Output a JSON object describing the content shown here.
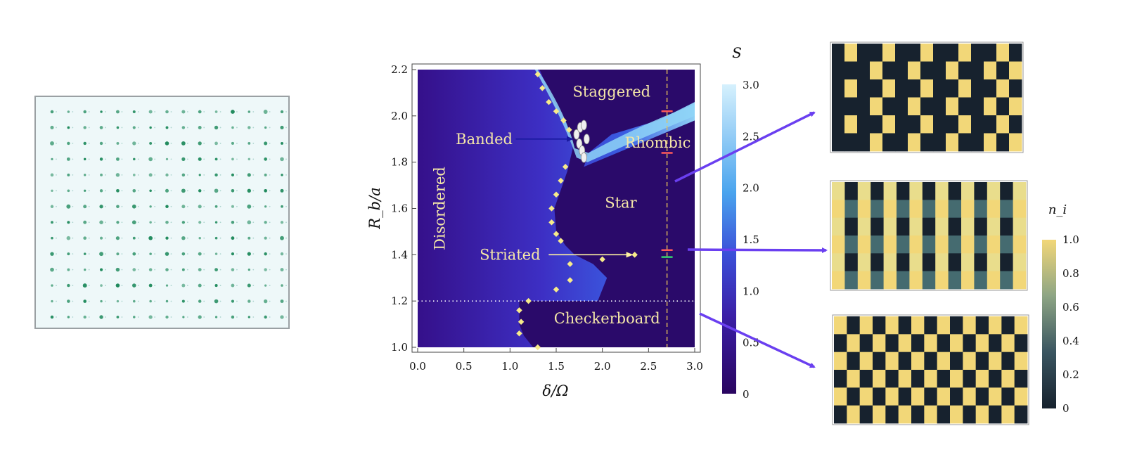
{
  "chart_data": [
    {
      "type": "scatter",
      "panel": "atom-array-image",
      "grid": {
        "rows": 14,
        "cols": 15
      },
      "colors": {
        "background": "#eef8f9",
        "atom": "#1f8a5c",
        "frame": "#9aa0a3"
      }
    },
    {
      "type": "heatmap",
      "panel": "phase-diagram",
      "xlabel": "δ/Ω",
      "ylabel": "R_b/a",
      "xlim": [
        0,
        3.0
      ],
      "ylim": [
        1.0,
        2.2
      ],
      "xticks": [
        "0.0",
        "0.5",
        "1.0",
        "1.5",
        "2.0",
        "2.5",
        "3.0"
      ],
      "yticks": [
        "1.0",
        "1.2",
        "1.4",
        "1.6",
        "1.8",
        "2.0",
        "2.2"
      ],
      "colorbar": {
        "label": "S",
        "range": [
          0,
          3.0
        ],
        "ticks": [
          "0",
          "0.5",
          "1.0",
          "1.5",
          "2.0",
          "2.5",
          "3.0"
        ]
      },
      "phases": [
        {
          "name": "Disordered",
          "x": 0.25,
          "y": 1.6,
          "rotated": true
        },
        {
          "name": "Staggered",
          "x": 2.1,
          "y": 2.1
        },
        {
          "name": "Rhombic",
          "x": 2.6,
          "y": 1.88
        },
        {
          "name": "Star",
          "x": 2.2,
          "y": 1.62
        },
        {
          "name": "Checkerboard",
          "x": 2.05,
          "y": 1.12
        }
      ],
      "annotations": [
        {
          "text": "Banded",
          "x": 0.72,
          "y": 1.9,
          "arrow_to": [
            1.72,
            1.9
          ]
        },
        {
          "text": "Striated",
          "x": 1.0,
          "y": 1.4,
          "arrow_to": [
            2.35,
            1.4
          ]
        }
      ],
      "boundary_points": [
        [
          1.3,
          2.18
        ],
        [
          1.35,
          2.12
        ],
        [
          1.42,
          2.06
        ],
        [
          1.5,
          2.02
        ],
        [
          1.58,
          1.98
        ],
        [
          1.64,
          1.94
        ],
        [
          1.6,
          1.78
        ],
        [
          1.55,
          1.72
        ],
        [
          1.5,
          1.66
        ],
        [
          1.45,
          1.6
        ],
        [
          1.45,
          1.54
        ],
        [
          1.5,
          1.49
        ],
        [
          1.55,
          1.46
        ],
        [
          1.65,
          1.36
        ],
        [
          2.0,
          1.38
        ],
        [
          2.35,
          1.4
        ],
        [
          1.65,
          1.29
        ],
        [
          1.5,
          1.25
        ],
        [
          1.2,
          1.2
        ],
        [
          1.1,
          1.16
        ],
        [
          1.12,
          1.11
        ],
        [
          1.1,
          1.06
        ],
        [
          1.3,
          1.0
        ]
      ],
      "banded_points": [
        [
          1.72,
          1.92
        ],
        [
          1.75,
          1.88
        ],
        [
          1.78,
          1.85
        ],
        [
          1.8,
          1.82
        ],
        [
          1.83,
          1.9
        ],
        [
          1.76,
          1.95
        ],
        [
          1.8,
          1.96
        ]
      ],
      "dotted_line_y": 1.2,
      "dashed_line_x": 2.7,
      "markers": [
        {
          "x": 2.7,
          "y": 2.02,
          "color": "#ff5a5a"
        },
        {
          "x": 2.7,
          "y": 1.84,
          "color": "#ff5a5a"
        },
        {
          "x": 2.7,
          "y": 1.42,
          "color": "#ff5a5a"
        },
        {
          "x": 2.7,
          "y": 1.39,
          "color": "#36d06f"
        }
      ],
      "colors": {
        "dark": "#2a0a6a",
        "mid": "#3b4fd8",
        "light": "#c7ecfb",
        "text": "#f5e7a8",
        "points": "#f7eb8a"
      }
    },
    {
      "type": "heatmap",
      "panel": "rhombic-configuration",
      "rows": 6,
      "cols": 15,
      "pattern": "rhombic"
    },
    {
      "type": "heatmap",
      "panel": "striated-configuration",
      "rows": 6,
      "cols": 15,
      "pattern": "striated"
    },
    {
      "type": "heatmap",
      "panel": "checkerboard-configuration",
      "rows": 6,
      "cols": 15,
      "pattern": "checkerboard"
    }
  ],
  "colorbar_ni": {
    "label": "n_i",
    "range": [
      0,
      1.0
    ],
    "ticks": [
      "0",
      "0.2",
      "0.4",
      "0.6",
      "0.8",
      "1.0"
    ],
    "colors": [
      "#17222e",
      "#3a5560",
      "#8da584",
      "#f2d778"
    ]
  },
  "arrow_color": "#6a3ff0"
}
